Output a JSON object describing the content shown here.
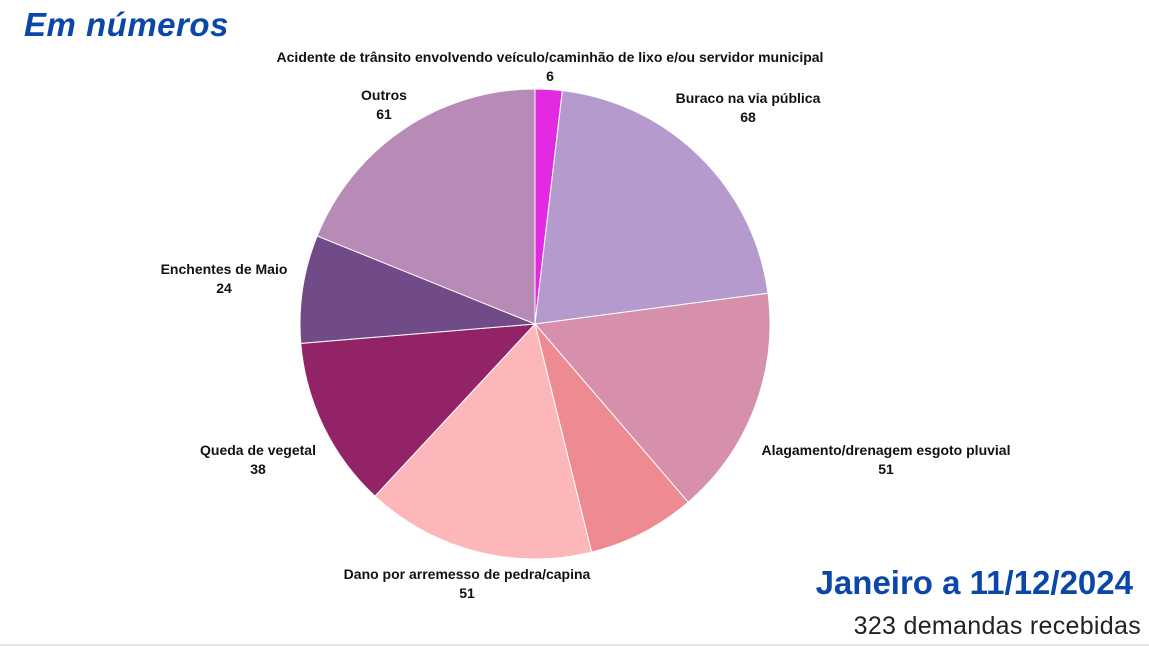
{
  "header": {
    "title": "Em números"
  },
  "footer": {
    "period": "Janeiro a 11/12/2024",
    "summary": "323 demandas recebidas"
  },
  "chart_data": {
    "type": "pie",
    "title": "",
    "total": 323,
    "slices": [
      {
        "label": "Acidente de trânsito envolvendo veículo/caminhão de lixo e/ou servidor municipal",
        "value": 6,
        "value_label": "6",
        "color": "#e22ae2"
      },
      {
        "label": "Buraco na via pública",
        "value": 68,
        "value_label": "68",
        "color": "#b59bcd"
      },
      {
        "label": "Alagamento/drenagem esgoto pluvial",
        "value": 51,
        "value_label": "51",
        "color": "#d690ab"
      },
      {
        "label": "",
        "value": 24,
        "value_label": "",
        "color": "#ee8a92"
      },
      {
        "label": "Dano por arremesso de pedra/capina",
        "value": 51,
        "value_label": "51",
        "color": "#fdb7bb"
      },
      {
        "label": "Queda de vegetal",
        "value": 38,
        "value_label": "38",
        "color": "#932367"
      },
      {
        "label": "Enchentes de Maio",
        "value": 24,
        "value_label": "24",
        "color": "#714b87"
      },
      {
        "label": "Outros",
        "value": 61,
        "value_label": "61",
        "color": "#b88bb6"
      }
    ]
  }
}
